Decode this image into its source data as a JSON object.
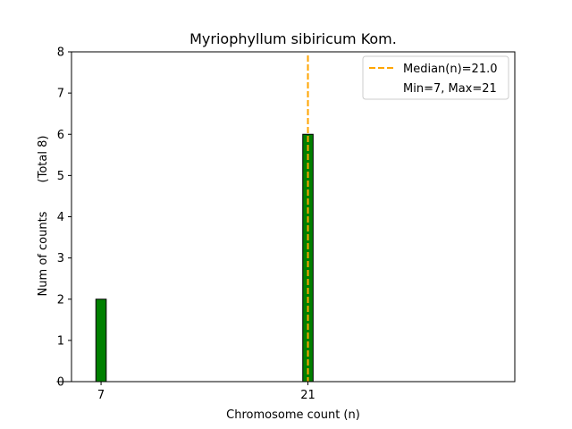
{
  "chart_data": {
    "type": "bar",
    "title": "Myriophyllum sibiricum Kom.",
    "xlabel": "Chromosome count (n)",
    "ylabel": "Num of counts",
    "ylabel_total": "(Total 8)",
    "xlim": [
      5,
      35
    ],
    "ylim": [
      0,
      8
    ],
    "x_ticks": [
      7,
      21
    ],
    "y_ticks": [
      0,
      1,
      2,
      3,
      4,
      5,
      6,
      7,
      8
    ],
    "bars": [
      {
        "x": 7,
        "count": 2
      },
      {
        "x": 21,
        "count": 6
      }
    ],
    "bar_width": 0.7,
    "median": 21.0,
    "median_label": "Median(n)=21.0",
    "minmax_label": "Min=7, Max=21",
    "legend_position": "upper right",
    "grid": false
  },
  "colors": {
    "bar_fill": "#008000",
    "bar_edge": "#000000",
    "median_line": "#ffa500",
    "axis": "#000000"
  }
}
